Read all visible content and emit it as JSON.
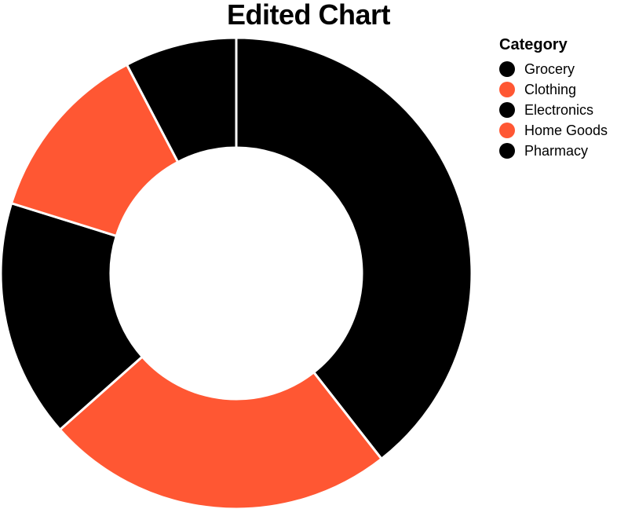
{
  "chart_data": {
    "type": "pie",
    "title": "Edited Chart",
    "legend_title": "Category",
    "legend_position": "top-right",
    "categories": [
      "Grocery",
      "Clothing",
      "Electronics",
      "Home Goods",
      "Pharmacy"
    ],
    "values": [
      41,
      25,
      17,
      13,
      8
    ],
    "colors": [
      "#000000",
      "#ff5733",
      "#000000",
      "#ff5733",
      "#000000"
    ]
  }
}
